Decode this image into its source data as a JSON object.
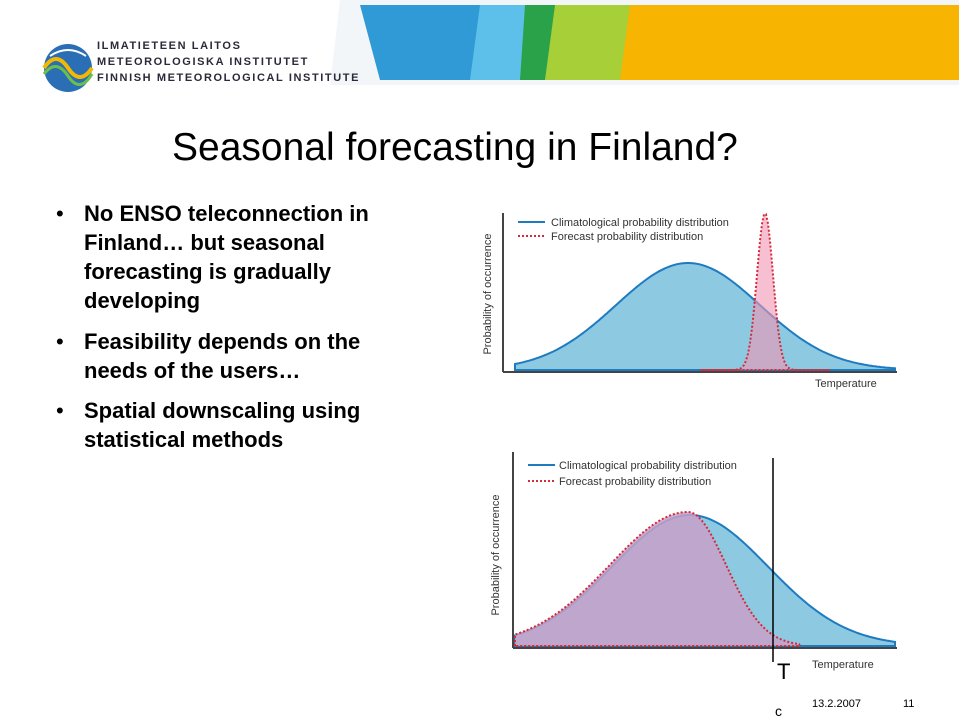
{
  "header": {
    "org_lines": [
      "ILMATIETEEN LAITOS",
      "METEOROLOGISKA INSTITUTET",
      "FINNISH METEOROLOGICAL INSTITUTE"
    ]
  },
  "title": "Seasonal forecasting in Finland?",
  "bullets": [
    "No ENSO teleconnection in Finland… but seasonal forecasting is gradually developing",
    "Feasibility depends on the needs of the users…",
    "Spatial downscaling using statistical methods"
  ],
  "figures": [
    {
      "legend": [
        "Climatological probability distribution",
        "Forecast probability distribution"
      ],
      "y_label": "Probability of occurrence",
      "x_label": "Temperature"
    },
    {
      "legend": [
        "Climatological probability distribution",
        "Forecast probability distribution"
      ],
      "y_label": "Probability of occurrence",
      "x_label": "Temperature",
      "threshold_label": "T",
      "threshold_subscript": "c"
    }
  ],
  "footer": {
    "date": "13.2.2007",
    "page": "11"
  }
}
